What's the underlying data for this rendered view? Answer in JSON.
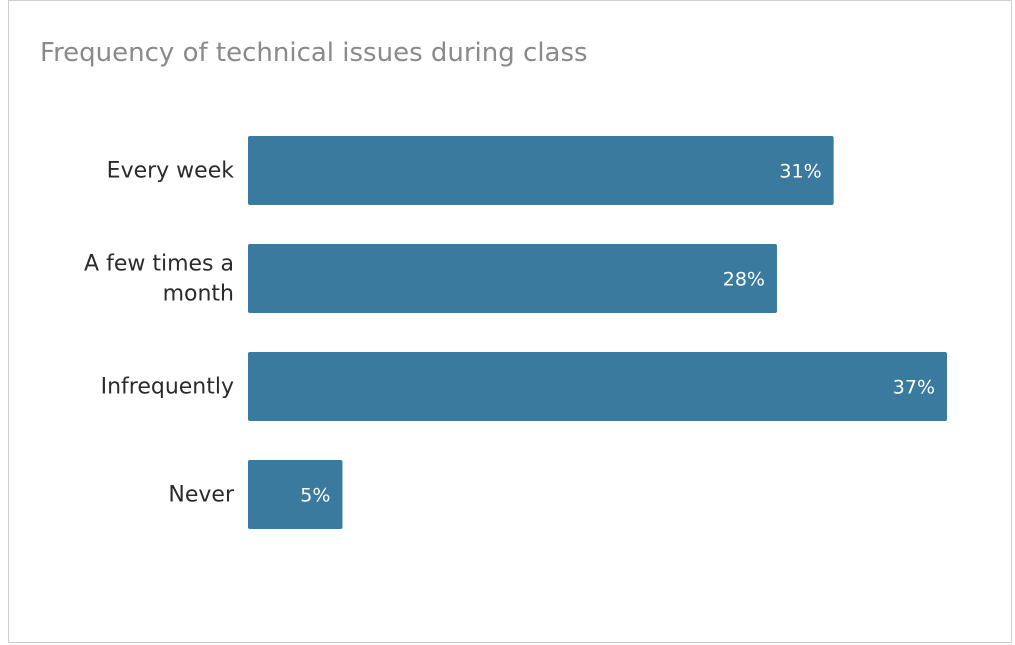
{
  "chart_data": {
    "type": "bar",
    "orientation": "horizontal",
    "title": "Frequency of technical issues during class",
    "categories": [
      [
        "Every week"
      ],
      [
        "A few times a",
        "month"
      ],
      [
        "Infrequently"
      ],
      [
        "Never"
      ]
    ],
    "values": [
      31,
      28,
      37,
      5
    ],
    "value_labels": [
      "31%",
      "28%",
      "37%",
      "5%"
    ],
    "xlabel": "",
    "ylabel": "",
    "xlim": [
      0,
      37
    ],
    "grid": false,
    "legend": "none",
    "bar_color": "#3b7a9f"
  }
}
